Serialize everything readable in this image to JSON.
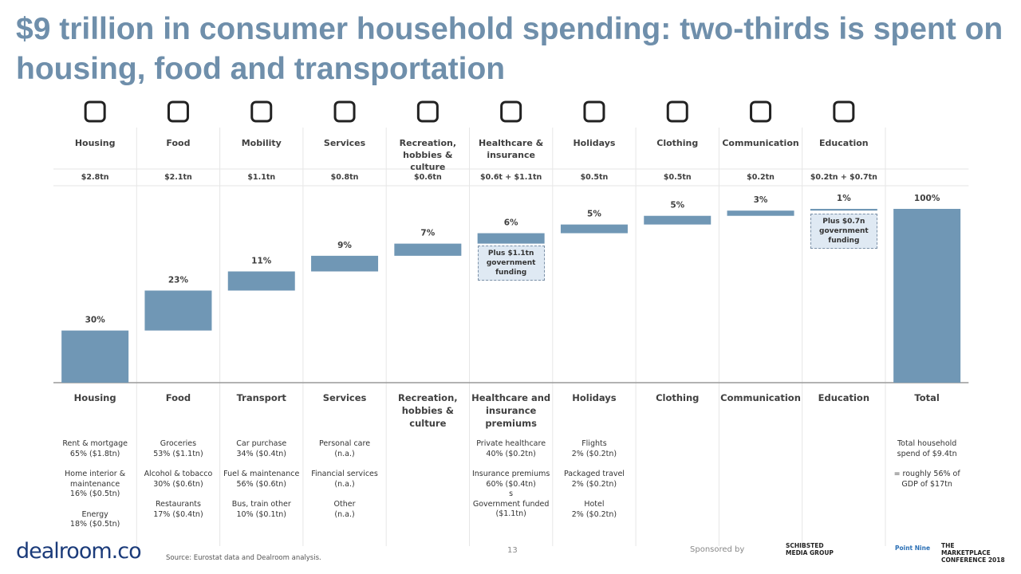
{
  "title": "$9 trillion in consumer household spending: two-thirds is spent on housing, food and transportation",
  "top_labels": [
    "Housing",
    "Food",
    "Mobility",
    "Services",
    "Recreation, hobbies & culture",
    "Healthcare & insurance",
    "Holidays",
    "Clothing",
    "Communication",
    "Education"
  ],
  "amounts": [
    "$2.8tn",
    "$2.1tn",
    "$1.1tn",
    "$0.8tn",
    "$0.6tn",
    "$0.6t + $1.1tn",
    "$0.5tn",
    "$0.5tn",
    "$0.2tn",
    "$0.2tn + $0.7tn"
  ],
  "chart_data": {
    "type": "waterfall",
    "categories": [
      "Housing",
      "Food",
      "Transport",
      "Services",
      "Recreation, hobbies & culture",
      "Healthcare and insurance premiums",
      "Holidays",
      "Clothing",
      "Communication",
      "Education",
      "Total"
    ],
    "values": [
      30,
      23,
      11,
      9,
      7,
      6,
      5,
      5,
      3,
      1,
      100
    ],
    "value_labels": [
      "30%",
      "23%",
      "11%",
      "9%",
      "7%",
      "6%",
      "5%",
      "5%",
      "3%",
      "1%",
      "100%"
    ],
    "color": "#7097b5",
    "ylim": [
      0,
      100
    ],
    "annotations": [
      "Plus $1.1tn government funding",
      "Plus $0.7n government funding"
    ]
  },
  "details": [
    [
      "Rent & mortgage\n65% ($1.8tn)",
      "Home interior & maintenance\n16% ($0.5tn)",
      "Energy\n18% ($0.5tn)"
    ],
    [
      "Groceries\n53% ($1.1tn)",
      "Alcohol & tobacco\n30% ($0.6tn)",
      "Restaurants\n17% ($0.4tn)"
    ],
    [
      "Car purchase\n34% ($0.4tn)",
      "Fuel & maintenance\n56% ($0.6tn)",
      "Bus, train other\n10% ($0.1tn)"
    ],
    [
      "Personal care\n(n.a.)",
      "Financial services\n(n.a.)",
      "Other\n(n.a.)"
    ],
    [],
    [
      "Private healthcare\n40% ($0.2tn)",
      "Insurance premiums\n60% ($0.4tn)\ns\nGovernment funded\n($1.1tn)"
    ],
    [
      "Flights\n2% ($0.2tn)",
      "Packaged travel\n2% ($0.2tn)",
      "Hotel\n2% ($0.2tn)"
    ],
    [],
    [],
    [],
    [
      "Total household spend of $9.4tn",
      "= roughly 56% of GDP of $17tn"
    ]
  ],
  "footer": {
    "logo": "dealroom.co",
    "source": "Source: Eurostat data and Dealroom analysis.",
    "page": "13",
    "sponsored": "Sponsored by",
    "sponsors": [
      "SCHIBSTED MEDIA GROUP",
      "Point Nine",
      "THE MARKETPLACE CONFERENCE 2018"
    ]
  }
}
